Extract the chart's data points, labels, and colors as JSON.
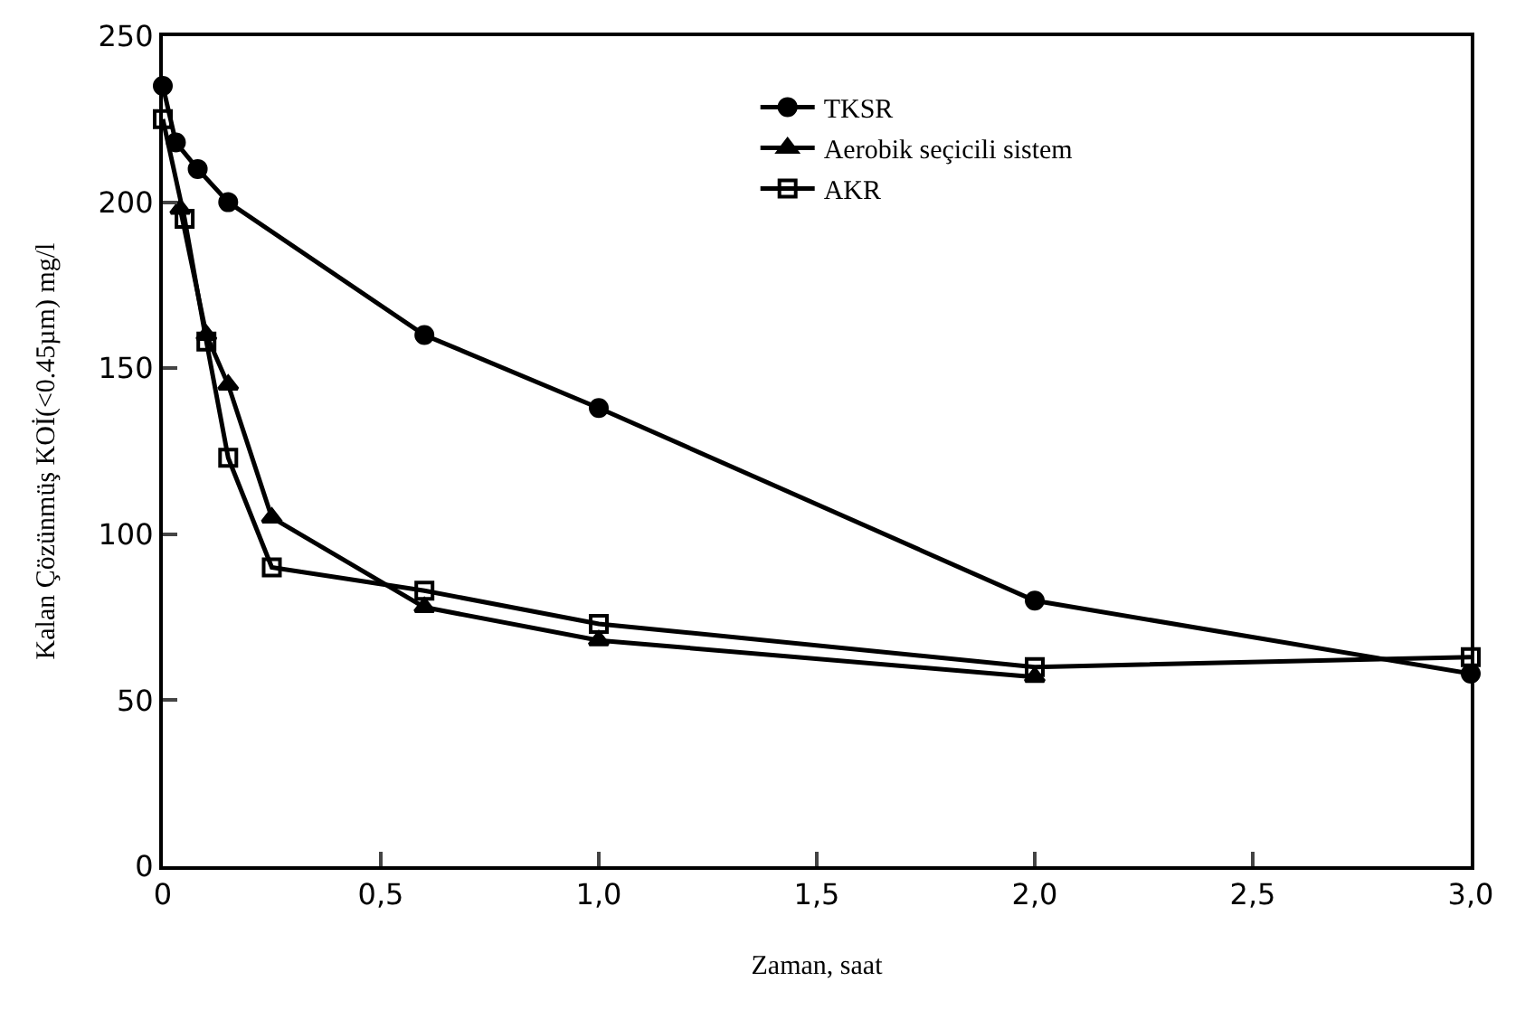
{
  "chart_data": {
    "type": "line",
    "xlabel": "Zaman, saat",
    "ylabel": "Kalan Çözünmüş KOİ(<0.45µm) mg/l",
    "xlim": [
      0,
      3.0
    ],
    "ylim": [
      0,
      250
    ],
    "xticks": [
      0,
      {
        "value": 0.5,
        "label": "0,5"
      },
      {
        "value": 1.0,
        "label": "1,0"
      },
      {
        "value": 1.5,
        "label": "1,5"
      },
      {
        "value": 2.0,
        "label": "2,0"
      },
      {
        "value": 2.5,
        "label": "2,5"
      },
      {
        "value": 3.0,
        "label": "3,0"
      }
    ],
    "yticks": [
      0,
      50,
      100,
      150,
      200,
      250
    ],
    "legend": "top right",
    "series": [
      {
        "name": "TKSR",
        "color": "#000000",
        "marker": "circle",
        "x": [
          0,
          0.03,
          0.08,
          0.15,
          0.6,
          1.0,
          2.0,
          3.0
        ],
        "values": [
          235,
          218,
          210,
          200,
          160,
          138,
          80,
          58
        ]
      },
      {
        "name": "Aerobik seçicili sistem",
        "color": "#000000",
        "marker": "triangle",
        "x": [
          0.04,
          0.1,
          0.15,
          0.25,
          0.6,
          1.0,
          2.0
        ],
        "values": [
          198,
          160,
          145,
          105,
          78,
          68,
          57
        ]
      },
      {
        "name": "AKR",
        "color": "#000000",
        "marker": "square-open",
        "x": [
          0,
          0.05,
          0.1,
          0.15,
          0.25,
          0.6,
          1.0,
          2.0,
          3.0
        ],
        "values": [
          225,
          195,
          158,
          123,
          90,
          83,
          73,
          60,
          63
        ]
      }
    ]
  }
}
